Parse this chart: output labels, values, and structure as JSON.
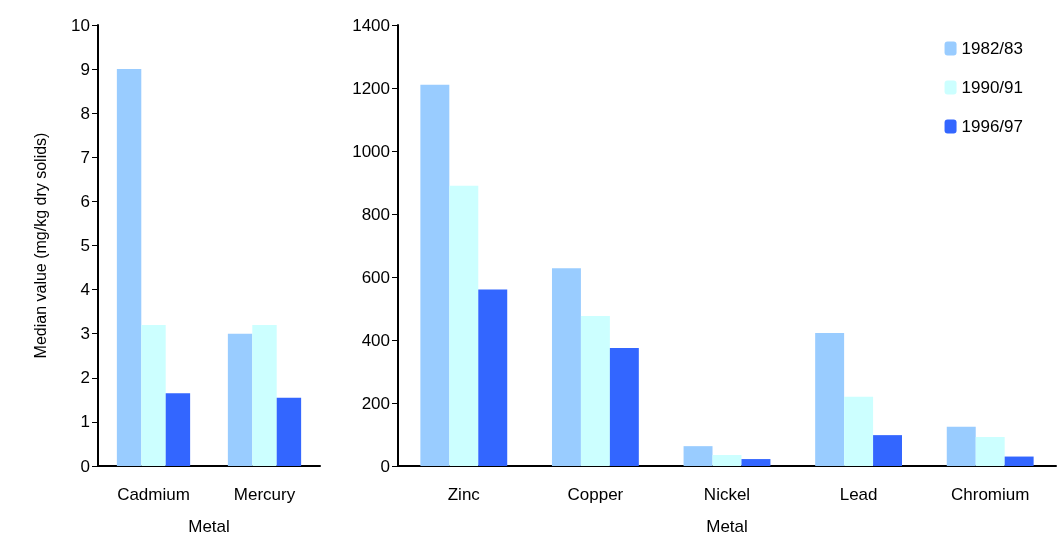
{
  "chart_data": [
    {
      "type": "bar",
      "xlabel": "Metal",
      "ylabel": "Median value (mg/kg dry solids)",
      "categories": [
        "Cadmium",
        "Mercury"
      ],
      "series": [
        {
          "color": "#99ccff",
          "values": [
            9,
            3
          ]
        },
        {
          "color": "#ccffff",
          "values": [
            3.2,
            3.2
          ]
        },
        {
          "color": "#3366ff",
          "values": [
            1.65,
            1.55
          ]
        }
      ],
      "ylim": [
        0,
        10
      ],
      "yticks": [
        0,
        1,
        2,
        3,
        4,
        5,
        6,
        7,
        8,
        9,
        10
      ],
      "grid": false,
      "legend": false
    },
    {
      "type": "bar",
      "xlabel": "Metal",
      "categories": [
        "Zinc",
        "Copper",
        "Nickel",
        "Lead",
        "Chromium"
      ],
      "series": [
        {
          "name": "1982/83",
          "color": "#99ccff",
          "values": [
            1210,
            628,
            63,
            422,
            125
          ]
        },
        {
          "name": "1990/91",
          "color": "#ccffff",
          "values": [
            890,
            476,
            35,
            220,
            92
          ]
        },
        {
          "name": "1996/97",
          "color": "#3366ff",
          "values": [
            560,
            375,
            22,
            98,
            30
          ]
        }
      ],
      "ylim": [
        0,
        1400
      ],
      "yticks": [
        0,
        200,
        400,
        600,
        800,
        1000,
        1200,
        1400
      ],
      "grid": false,
      "legend": "top right"
    }
  ]
}
